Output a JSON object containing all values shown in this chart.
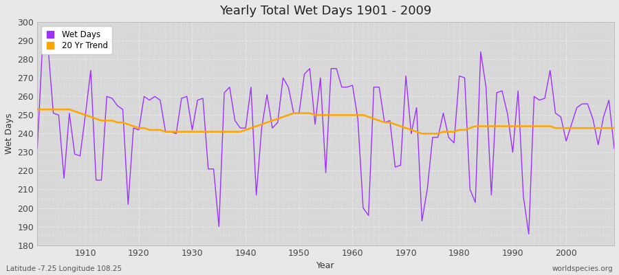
{
  "title": "Yearly Total Wet Days 1901 - 2009",
  "xlabel": "Year",
  "ylabel": "Wet Days",
  "legend_wet": "Wet Days",
  "legend_trend": "20 Yr Trend",
  "lat_lon_text": "Latitude -7.25 Longitude 108.25",
  "source_text": "worldspecies.org",
  "ylim": [
    180,
    300
  ],
  "yticks": [
    180,
    190,
    200,
    210,
    220,
    230,
    240,
    250,
    260,
    270,
    280,
    290,
    300
  ],
  "wet_color": "#9B30FF",
  "trend_color": "#FFA500",
  "fig_bg": "#E8E8E8",
  "plot_bg": "#D8D8D8",
  "wet_days": [
    232,
    289,
    287,
    251,
    250,
    216,
    251,
    229,
    228,
    250,
    274,
    215,
    215,
    260,
    259,
    255,
    253,
    202,
    243,
    242,
    260,
    258,
    260,
    258,
    241,
    241,
    240,
    259,
    260,
    242,
    258,
    259,
    221,
    221,
    190,
    262,
    265,
    247,
    243,
    243,
    265,
    207,
    243,
    261,
    243,
    246,
    270,
    265,
    251,
    251,
    272,
    275,
    245,
    270,
    219,
    275,
    275,
    265,
    265,
    266,
    248,
    200,
    196,
    265,
    265,
    246,
    247,
    222,
    223,
    271,
    240,
    254,
    193,
    210,
    238,
    238,
    251,
    238,
    235,
    271,
    270,
    210,
    203,
    284,
    265,
    207,
    262,
    263,
    251,
    230,
    263,
    206,
    186,
    260,
    258,
    259,
    274,
    251,
    249,
    236,
    245,
    254,
    256,
    256,
    248,
    234,
    249,
    258,
    232
  ],
  "trend_values": [
    253,
    253,
    253,
    253,
    253,
    253,
    253,
    252,
    251,
    250,
    249,
    248,
    247,
    247,
    247,
    246,
    246,
    245,
    244,
    243,
    243,
    242,
    242,
    242,
    241,
    241,
    241,
    241,
    241,
    241,
    241,
    241,
    241,
    241,
    241,
    241,
    241,
    241,
    241,
    242,
    243,
    244,
    245,
    246,
    247,
    248,
    249,
    250,
    251,
    251,
    251,
    251,
    250,
    250,
    250,
    250,
    250,
    250,
    250,
    250,
    250,
    250,
    249,
    248,
    247,
    246,
    246,
    245,
    244,
    243,
    242,
    241,
    240,
    240,
    240,
    240,
    241,
    241,
    241,
    242,
    242,
    243,
    244,
    244,
    244,
    244,
    244,
    244,
    244,
    244,
    244,
    244,
    244,
    244,
    244,
    244,
    244,
    243,
    243,
    243,
    243,
    243,
    243,
    243,
    243,
    243,
    243,
    243,
    243
  ]
}
